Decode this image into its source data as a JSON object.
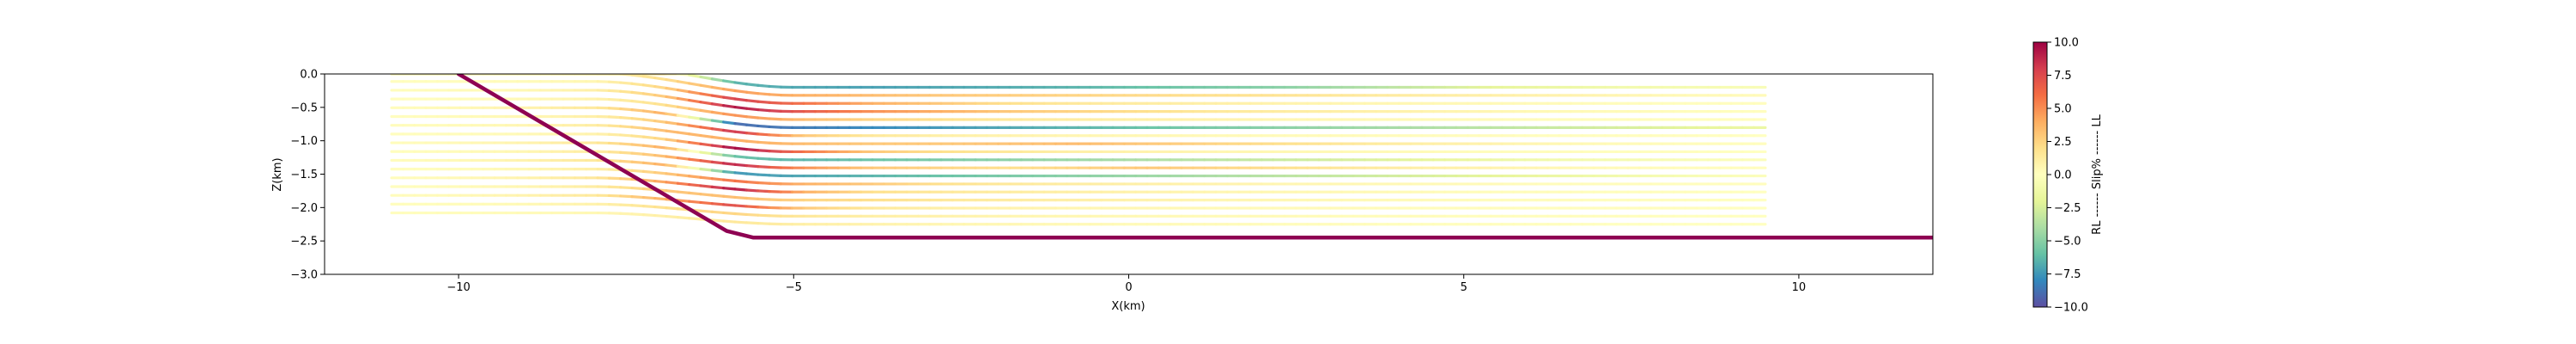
{
  "chart_data": {
    "type": "line",
    "description_free": true,
    "xlabel": "X(km)",
    "ylabel": "Z(km)",
    "xlim": [
      -12,
      12
    ],
    "ylim": [
      -3.0,
      0.0
    ],
    "x_ticks": [
      -10,
      -5,
      0,
      5,
      10
    ],
    "x_tick_labels": [
      "−10",
      "−5",
      "0",
      "5",
      "10"
    ],
    "y_ticks": [
      0.0,
      -0.5,
      -1.0,
      -1.5,
      -2.0,
      -2.5,
      -3.0
    ],
    "y_tick_labels": [
      "0.0",
      "−0.5",
      "−1.0",
      "−1.5",
      "−2.0",
      "−2.5",
      "−3.0"
    ],
    "fault": {
      "color": "#8e0152",
      "points": [
        [
          -10.0,
          0.0
        ],
        [
          -6.0,
          -2.35
        ],
        [
          -5.6,
          -2.45
        ],
        [
          12.0,
          -2.45
        ]
      ]
    },
    "layers": {
      "x_start": -11.0,
      "x_end": 9.5,
      "z_top": -0.2,
      "z_bottom": -2.25,
      "count": 18,
      "fold_x_start": -8.0,
      "fold_x_end": -5.0,
      "bundle_x_start": -6.5,
      "bundle_x_end": -5.0
    },
    "slip_samples_along_layers": [
      [
        0.3,
        0.5,
        0.8,
        1.2,
        1.8,
        -6.5,
        -7.0,
        -7.2,
        -7.0,
        -6.8,
        -6.5,
        -6.0,
        -5.5,
        -5.0,
        -4.0,
        -3.0,
        -2.0,
        -1.5,
        -1.0,
        -0.8,
        -0.5
      ],
      [
        0.2,
        0.4,
        0.6,
        1.0,
        2.0,
        4.5,
        4.0,
        3.5,
        3.0,
        2.8,
        2.5,
        2.2,
        2.0,
        1.8,
        1.5,
        1.2,
        1.0,
        0.8,
        0.6,
        0.4,
        0.3
      ],
      [
        0.1,
        0.2,
        0.3,
        0.6,
        2.5,
        8.0,
        6.0,
        4.0,
        3.0,
        2.0,
        1.5,
        1.2,
        1.0,
        0.8,
        0.6,
        0.5,
        0.4,
        0.3,
        0.2,
        0.1,
        0.1
      ],
      [
        0.2,
        0.3,
        0.5,
        1.0,
        3.0,
        9.5,
        7.0,
        5.0,
        4.0,
        3.0,
        2.5,
        2.0,
        1.5,
        1.2,
        1.0,
        0.8,
        0.6,
        0.4,
        0.3,
        0.2,
        0.1
      ],
      [
        0.1,
        0.2,
        0.4,
        0.8,
        2.0,
        5.0,
        3.5,
        2.5,
        2.0,
        1.5,
        1.2,
        1.0,
        0.8,
        0.6,
        0.5,
        0.4,
        0.3,
        0.2,
        0.2,
        0.1,
        0.1
      ],
      [
        0.2,
        0.4,
        0.8,
        1.5,
        4.0,
        -9.0,
        -8.5,
        -8.0,
        -7.5,
        -7.0,
        -6.5,
        -6.0,
        -5.5,
        -5.0,
        -4.5,
        -4.0,
        -3.5,
        -3.0,
        -2.5,
        -2.0,
        -1.5
      ],
      [
        0.1,
        0.3,
        0.5,
        1.0,
        3.0,
        8.5,
        3.0,
        1.5,
        1.0,
        0.8,
        0.6,
        0.5,
        0.4,
        0.3,
        0.3,
        0.2,
        0.2,
        0.1,
        0.1,
        0.1,
        0.0
      ],
      [
        0.2,
        0.3,
        0.6,
        1.2,
        3.5,
        4.0,
        3.5,
        3.0,
        3.0,
        3.2,
        3.5,
        3.0,
        2.5,
        2.0,
        1.5,
        1.0,
        0.8,
        0.5,
        0.3,
        0.2,
        0.1
      ],
      [
        0.1,
        0.2,
        0.4,
        0.8,
        2.5,
        10.0,
        6.0,
        3.0,
        2.0,
        1.5,
        1.0,
        0.8,
        0.6,
        0.5,
        0.4,
        0.3,
        0.2,
        0.2,
        0.1,
        0.1,
        0.0
      ],
      [
        0.2,
        0.4,
        0.8,
        1.5,
        4.0,
        -6.0,
        -6.5,
        -6.0,
        -5.5,
        -5.0,
        -4.5,
        -4.0,
        -3.5,
        -3.0,
        -2.5,
        -2.0,
        -1.5,
        -1.0,
        -0.8,
        -0.5,
        -0.3
      ],
      [
        0.1,
        0.3,
        0.6,
        1.2,
        3.5,
        9.0,
        5.0,
        3.0,
        2.5,
        2.0,
        2.5,
        3.0,
        2.5,
        2.0,
        1.5,
        1.0,
        0.8,
        0.5,
        0.3,
        0.2,
        0.1
      ],
      [
        0.2,
        0.4,
        0.8,
        1.5,
        4.0,
        -7.5,
        -7.0,
        -6.5,
        -6.0,
        -5.5,
        -5.0,
        -4.5,
        -4.0,
        -3.5,
        -3.0,
        -2.5,
        -2.0,
        -1.5,
        -1.0,
        -0.6,
        -0.3
      ],
      [
        0.1,
        0.2,
        0.5,
        1.0,
        3.0,
        6.0,
        4.0,
        3.0,
        2.0,
        1.5,
        1.2,
        1.0,
        0.8,
        0.6,
        0.5,
        0.4,
        0.3,
        0.2,
        0.2,
        0.1,
        0.1
      ],
      [
        0.2,
        0.4,
        0.8,
        1.6,
        4.5,
        9.5,
        4.0,
        2.0,
        1.5,
        1.2,
        1.0,
        0.8,
        0.6,
        0.5,
        0.4,
        0.3,
        0.2,
        0.2,
        0.1,
        0.1,
        0.0
      ],
      [
        0.1,
        0.3,
        0.6,
        1.2,
        3.0,
        3.5,
        2.5,
        2.0,
        1.5,
        1.2,
        1.0,
        0.8,
        0.6,
        0.5,
        0.4,
        0.3,
        0.2,
        0.2,
        0.1,
        0.1,
        0.0
      ],
      [
        0.2,
        0.4,
        0.8,
        1.5,
        4.0,
        7.5,
        3.0,
        1.5,
        1.0,
        0.8,
        0.6,
        0.5,
        0.4,
        0.3,
        0.3,
        0.2,
        0.2,
        0.1,
        0.1,
        0.1,
        0.0
      ],
      [
        0.1,
        0.2,
        0.4,
        0.8,
        2.0,
        2.5,
        1.5,
        1.0,
        0.8,
        0.6,
        0.5,
        0.4,
        0.3,
        0.3,
        0.2,
        0.2,
        0.1,
        0.1,
        0.1,
        0.0,
        0.0
      ],
      [
        0.1,
        0.2,
        0.3,
        0.5,
        1.0,
        1.5,
        1.0,
        0.8,
        0.6,
        0.5,
        0.4,
        0.3,
        0.3,
        0.2,
        0.2,
        0.1,
        0.1,
        0.1,
        0.0,
        0.0,
        0.0
      ]
    ],
    "colorbar": {
      "label": "RL ------ Slip% ------ LL",
      "vmin": -10.0,
      "vmax": 10.0,
      "ticks": [
        10.0,
        7.5,
        5.0,
        2.5,
        0.0,
        -2.5,
        -5.0,
        -7.5,
        -10.0
      ],
      "tick_labels": [
        "10.0",
        "7.5",
        "5.0",
        "2.5",
        "0.0",
        "−2.5",
        "−5.0",
        "−7.5",
        "−10.0"
      ],
      "colormap": "Spectral_r",
      "colors": [
        "#5e4fa2",
        "#3288bd",
        "#66c2a5",
        "#abdda4",
        "#e6f598",
        "#ffffbf",
        "#fee08b",
        "#fdae61",
        "#f46d43",
        "#d53e4f",
        "#9e0142"
      ]
    }
  }
}
